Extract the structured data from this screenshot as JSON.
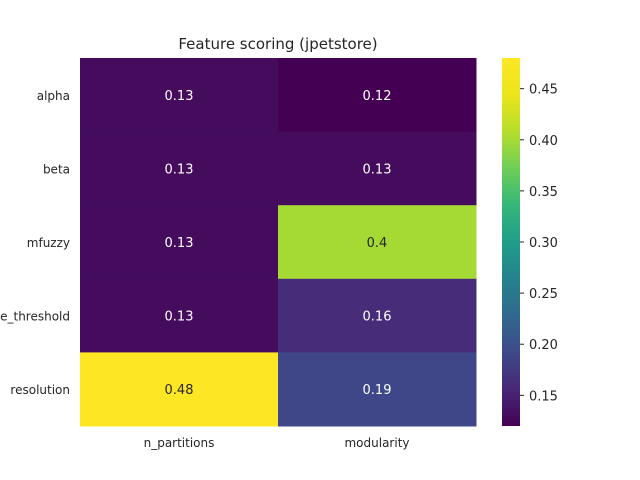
{
  "chart_data": {
    "type": "heatmap",
    "title": "Feature scoring (jpetstore)",
    "rows": [
      "alpha",
      "beta",
      "mfuzzy",
      "edge_threshold",
      "resolution"
    ],
    "columns": [
      "n_partitions",
      "modularity"
    ],
    "values": [
      [
        0.13,
        0.12
      ],
      [
        0.13,
        0.13
      ],
      [
        0.13,
        0.4
      ],
      [
        0.13,
        0.16
      ],
      [
        0.48,
        0.19
      ]
    ],
    "colormap": "viridis",
    "vmin": 0.12,
    "vmax": 0.48,
    "colorbar_ticks": [
      0.15,
      0.2,
      0.25,
      0.3,
      0.35,
      0.4,
      0.45
    ],
    "colorbar_tick_labels": [
      "0.15",
      "0.20",
      "0.25",
      "0.30",
      "0.35",
      "0.40",
      "0.45"
    ],
    "annotations": true,
    "grid": false
  }
}
